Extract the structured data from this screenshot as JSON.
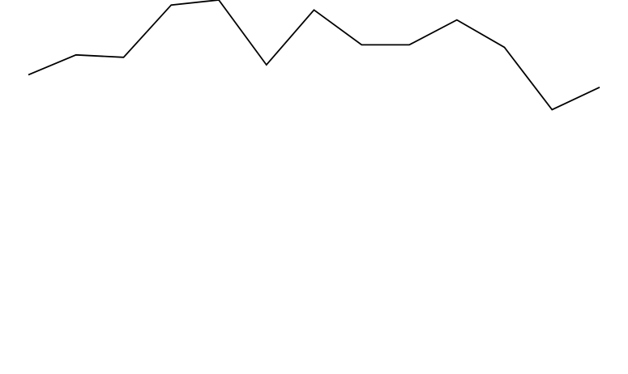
{
  "chart_data": {
    "type": "line",
    "title": "",
    "xlabel": "",
    "ylabel": "",
    "x": [
      1,
      2,
      3,
      4,
      5,
      6,
      7,
      8,
      9,
      10,
      11,
      12,
      13
    ],
    "series": [
      {
        "values": [
          60,
          64,
          63.5,
          74,
          75,
          62,
          73,
          66,
          66,
          71,
          65.5,
          53,
          57.5
        ]
      }
    ],
    "xlim": [
      1,
      13
    ],
    "ylim": [
      0,
      75
    ],
    "grid": false,
    "axes_visible": false,
    "legend": "none",
    "colors": {
      "line": "#000000",
      "background": "#ffffff"
    }
  }
}
